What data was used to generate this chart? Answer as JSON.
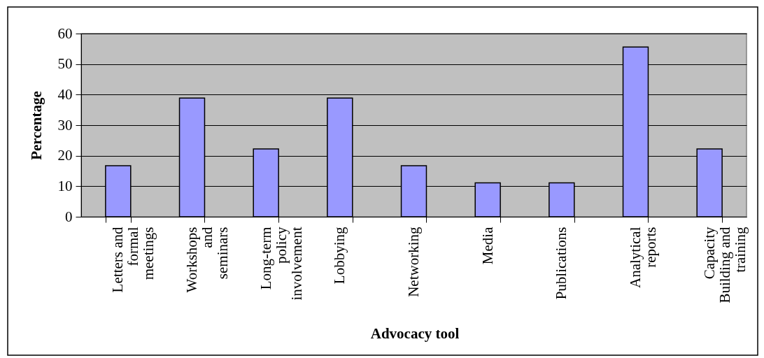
{
  "chart_data": {
    "type": "bar",
    "xlabel": "Advocacy tool",
    "ylabel": "Percentage",
    "categories": [
      "Letters and formal meetings",
      "Workshops and seminars",
      "Long-term policy involvement",
      "Lobbying",
      "Networking",
      "Media",
      "Publications",
      "Analytical reports",
      "Capacity Building and training"
    ],
    "values": [
      16.7,
      38.9,
      22.2,
      38.9,
      16.7,
      11.1,
      11.1,
      55.6,
      22.2
    ],
    "color": "#9999ff",
    "ylim": [
      0,
      60
    ],
    "yticks": [
      0,
      10,
      20,
      30,
      40,
      50,
      60
    ],
    "grid": "y"
  }
}
